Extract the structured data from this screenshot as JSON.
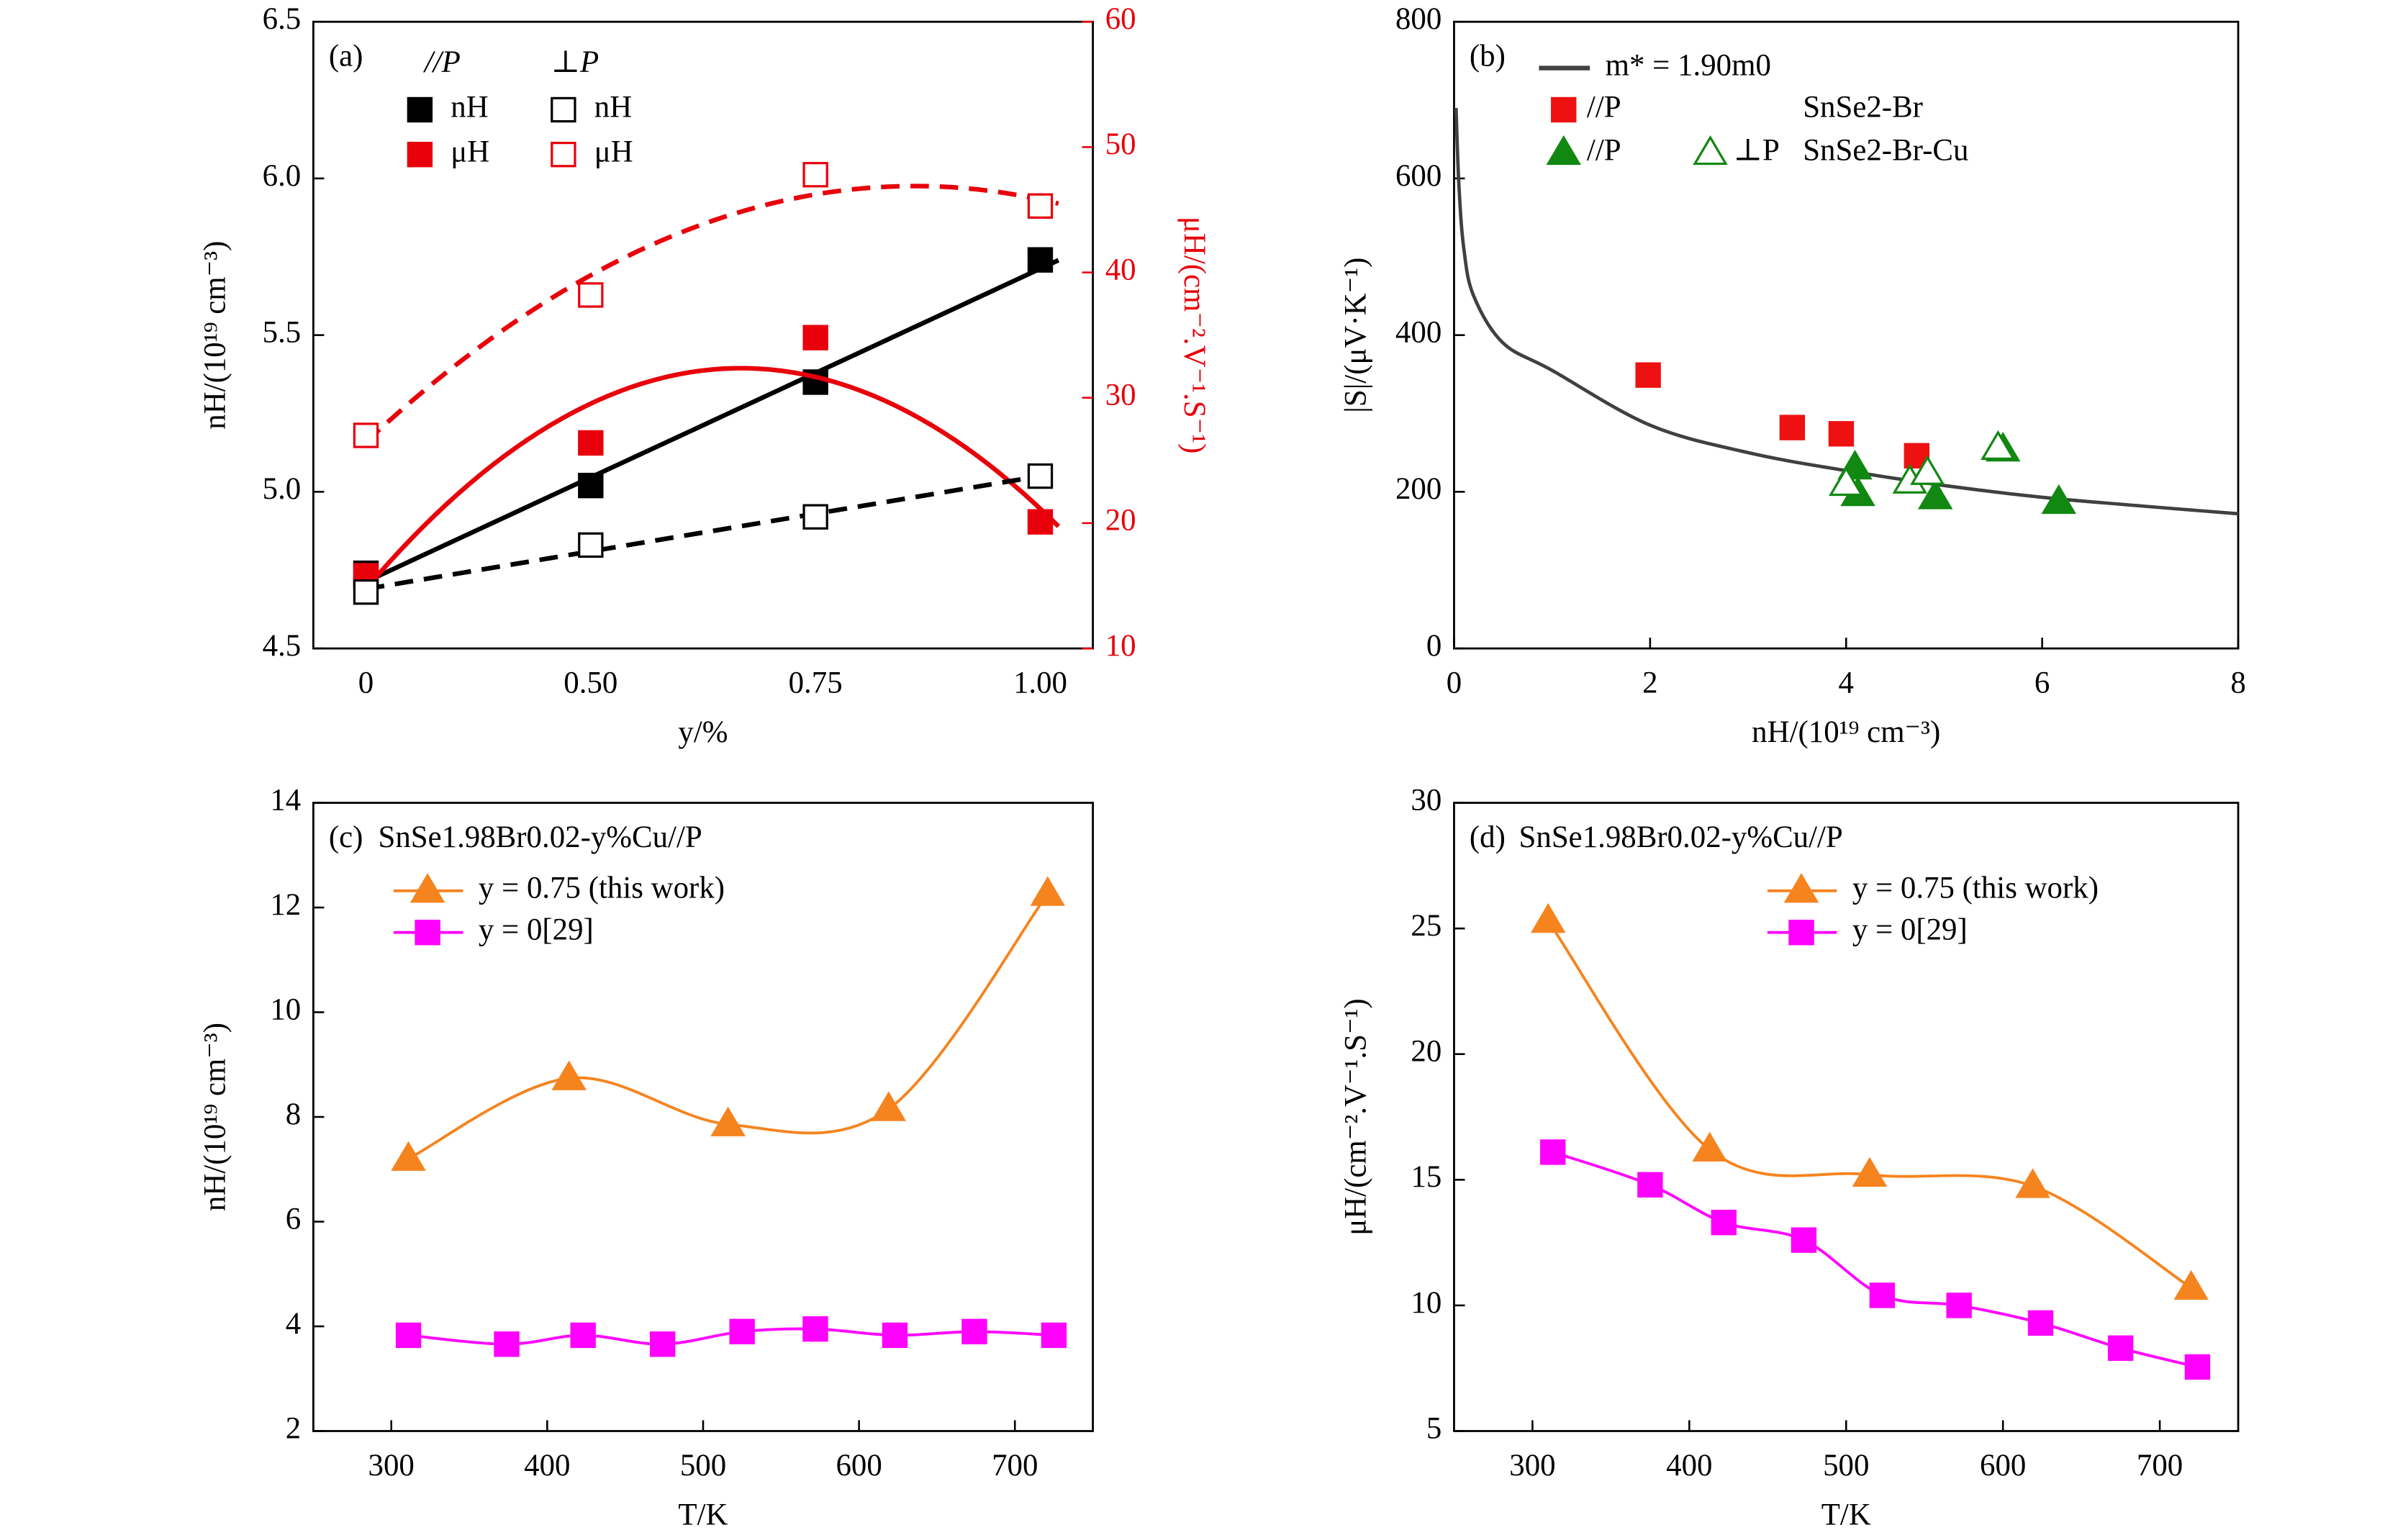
{
  "chart_data": [
    {
      "type": "scatter",
      "panel_label": "(a)",
      "x_label": "y/%",
      "y_label": "nH/(10¹⁹ cm⁻³)",
      "y2_label": "μH/(cm⁻².V⁻¹.S⁻¹)",
      "y2_color": "#e8000b",
      "categories": [
        "0",
        "0.50",
        "0.75",
        "1.00"
      ],
      "ylim": [
        4.5,
        6.5
      ],
      "yticks": [
        4.5,
        {
          "value": 5,
          "label": "5.0"
        },
        5.5,
        {
          "value": 6,
          "label": "6.0"
        },
        6.5
      ],
      "y2lim": [
        10,
        60
      ],
      "y2ticks": [
        10,
        20,
        30,
        40,
        50,
        60
      ],
      "legend_layout": "columns",
      "groups": [
        {
          "name": "//P",
          "series": [
            {
              "name": "nH",
              "color": "#000000",
              "marker": "square",
              "filled": true,
              "fit": "linear",
              "line_style": "solid",
              "values": [
                4.74,
                5.02,
                5.35,
                5.74
              ]
            },
            {
              "name": "μH",
              "color": "#e8000b",
              "marker": "square",
              "filled": true,
              "fit": "quadratic",
              "line_style": "solid",
              "axis": "y2",
              "values": [
                15.8,
                26.4,
                34.8,
                20.1
              ]
            }
          ]
        },
        {
          "name": "⊥P",
          "series": [
            {
              "name": "nH",
              "color": "#000000",
              "marker": "square",
              "filled": false,
              "fit": "linear",
              "line_style": "dashed",
              "values": [
                4.68,
                4.83,
                4.92,
                5.05
              ]
            },
            {
              "name": "μH",
              "color": "#e8000b",
              "marker": "square",
              "filled": false,
              "fit": "quadratic",
              "line_style": "dashed",
              "axis": "y2",
              "values": [
                27.0,
                38.2,
                47.8,
                45.3
              ]
            }
          ]
        }
      ]
    },
    {
      "type": "scatter",
      "panel_label": "(b)",
      "x_label": "nH/(10¹⁹ cm⁻³)",
      "y_label": "|S|/(μV·K⁻¹)",
      "xlim": [
        0,
        8
      ],
      "xticks": [
        0,
        2,
        4,
        6,
        8
      ],
      "ylim": [
        0,
        800
      ],
      "yticks": [
        0,
        200,
        400,
        600,
        800
      ],
      "legend_layout": "rows",
      "series": [
        {
          "name": "m* = 1.90m0",
          "color": "#404040",
          "line_style": "solid",
          "smooth": true,
          "x": [
            0.02,
            0.05,
            0.1,
            0.2,
            0.5,
            1,
            2,
            3,
            4,
            5,
            6,
            7,
            8
          ],
          "values": [
            690,
            590,
            510,
            450,
            390,
            355,
            285,
            250,
            227,
            208,
            193,
            182,
            172
          ]
        }
      ],
      "groups": [
        {
          "name": "SnSe2-Br",
          "series": [
            {
              "name": "//P",
              "color": "#ee1111",
              "marker": "square",
              "filled": true,
              "x": [
                1.98,
                3.45,
                3.95,
                4.72
              ],
              "values": [
                349,
                282,
                274,
                246
              ]
            }
          ]
        },
        {
          "name": "SnSe2-Br-Cu",
          "series": [
            {
              "name": "//P",
              "color": "#118811",
              "marker": "triangle",
              "filled": true,
              "x": [
                4.09,
                4.12,
                4.91,
                5.6,
                6.17
              ],
              "values": [
                231,
                197,
                193,
                254,
                187
              ]
            },
            {
              "name": "⊥P",
              "color": "#118811",
              "marker": "triangle",
              "filled": false,
              "x": [
                4.0,
                4.65,
                4.83,
                5.55
              ],
              "values": [
                210,
                213,
                224,
                256
              ]
            }
          ]
        }
      ]
    },
    {
      "type": "line",
      "panel_label": "(c)",
      "subtitle": "SnSe1.98Br0.02-y%Cu//P",
      "x_label": "T/K",
      "y_label": "nH/(10¹⁹ cm⁻³)",
      "xlim": [
        250,
        750
      ],
      "xticks": [
        300,
        400,
        500,
        600,
        700
      ],
      "ylim": [
        2,
        14
      ],
      "yticks": [
        2,
        4,
        6,
        8,
        10,
        12,
        14
      ],
      "legend": "upper left",
      "series": [
        {
          "name": "y = 0.75 (this work)",
          "color": "#f5841f",
          "marker": "triangle",
          "filled": true,
          "line_style": "solid",
          "smooth": true,
          "x": [
            311,
            414,
            516,
            619,
            721
          ],
          "values": [
            7.2,
            8.74,
            7.86,
            8.15,
            12.26
          ]
        },
        {
          "name": "y = 0[29]",
          "color": "#ff00ff",
          "marker": "square",
          "filled": true,
          "line_style": "solid",
          "smooth": true,
          "x": [
            311,
            374,
            423,
            474,
            525,
            572,
            623,
            674,
            725
          ],
          "values": [
            3.83,
            3.66,
            3.83,
            3.66,
            3.9,
            3.95,
            3.83,
            3.9,
            3.83
          ]
        }
      ]
    },
    {
      "type": "line",
      "panel_label": "(d)",
      "subtitle": "SnSe1.98Br0.02-y%Cu//P",
      "x_label": "T/K",
      "y_label": "μH/(cm⁻².V⁻¹.S⁻¹)",
      "xlim": [
        250,
        750
      ],
      "xticks": [
        300,
        400,
        500,
        600,
        700
      ],
      "ylim": [
        5,
        30
      ],
      "yticks": [
        5,
        10,
        15,
        20,
        25,
        30
      ],
      "legend": "upper right",
      "series": [
        {
          "name": "y = 0.75 (this work)",
          "color": "#f5841f",
          "marker": "triangle",
          "filled": true,
          "line_style": "solid",
          "smooth": true,
          "x": [
            310,
            413,
            515,
            619,
            720
          ],
          "values": [
            25.3,
            16.2,
            15.2,
            14.75,
            10.7
          ]
        },
        {
          "name": "y = 0[29]",
          "color": "#ff00ff",
          "marker": "square",
          "filled": true,
          "line_style": "solid",
          "smooth": true,
          "x": [
            313,
            375,
            422,
            473,
            523,
            572,
            624,
            675,
            724
          ],
          "values": [
            16.1,
            14.8,
            13.3,
            12.6,
            10.4,
            10.0,
            9.3,
            8.3,
            7.55
          ]
        }
      ]
    }
  ]
}
